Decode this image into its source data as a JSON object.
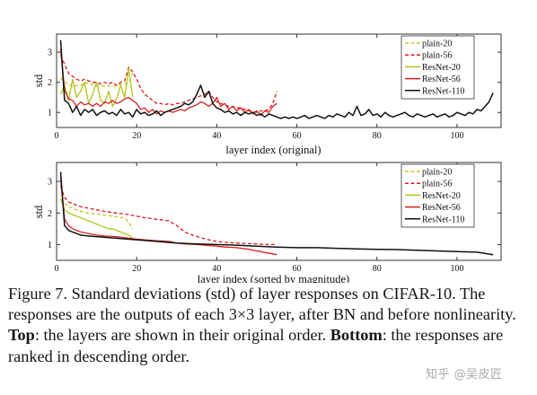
{
  "colors": {
    "plain_20": "#c8c42a",
    "plain_56": "#dd1c1c",
    "resnet_20": "#b4c31c",
    "resnet_56": "#d61f1f",
    "resnet_110": "#111111"
  },
  "caption": {
    "figure_label": "Figure 7. Standard deviations (std) of layer responses on CIFAR-10. The responses are the outputs of each 3×3 layer, after BN and before nonlinearity. ",
    "top_word": "Top",
    "top_text": ": the layers are shown in their original order. ",
    "bottom_word": "Bottom",
    "bottom_text": ": the responses are ranked in descending order."
  },
  "watermark": "知乎 @吴皮匠",
  "chart_data": [
    {
      "type": "line",
      "xlabel": "layer index (original)",
      "ylabel": "std",
      "xlim": [
        0,
        111
      ],
      "ylim": [
        0.5,
        3.6
      ],
      "xticks": [
        0,
        20,
        40,
        60,
        80,
        100
      ],
      "yticks": [
        1,
        2,
        3
      ],
      "grid": false,
      "legend_position": "top-right",
      "series": [
        {
          "name": "plain-20",
          "style": "dashed",
          "x": [
            1,
            2,
            3,
            4,
            5,
            6,
            7,
            8,
            9,
            10,
            11,
            12,
            13,
            14,
            15,
            16,
            17,
            18,
            19
          ],
          "y": [
            2.15,
            2.0,
            1.95,
            1.85,
            1.9,
            1.88,
            2.0,
            1.95,
            1.92,
            1.88,
            1.9,
            1.86,
            1.88,
            1.85,
            1.9,
            1.93,
            1.95,
            2.0,
            2.3
          ]
        },
        {
          "name": "plain-56",
          "style": "dashed",
          "x": [
            1,
            2,
            3,
            4,
            5,
            6,
            7,
            8,
            9,
            10,
            11,
            12,
            13,
            14,
            15,
            16,
            17,
            18,
            19,
            20,
            21,
            22,
            23,
            24,
            25,
            26,
            27,
            28,
            29,
            30,
            31,
            32,
            33,
            34,
            35,
            36,
            37,
            38,
            39,
            40,
            41,
            42,
            43,
            44,
            45,
            46,
            47,
            48,
            49,
            50,
            51,
            52,
            53,
            54,
            55
          ],
          "y": [
            2.9,
            2.6,
            2.3,
            2.2,
            2.1,
            2.05,
            2.1,
            2.05,
            2.0,
            2.0,
            1.95,
            2.0,
            1.95,
            2.0,
            1.9,
            2.0,
            2.05,
            2.5,
            2.35,
            2.1,
            1.8,
            1.6,
            1.5,
            1.4,
            1.3,
            1.3,
            1.25,
            1.3,
            1.25,
            1.3,
            1.3,
            1.35,
            1.4,
            1.45,
            1.5,
            1.55,
            1.6,
            1.7,
            1.5,
            1.35,
            1.3,
            1.25,
            1.2,
            1.2,
            1.15,
            1.15,
            1.1,
            1.05,
            1.05,
            1.0,
            1.05,
            1.05,
            1.1,
            1.3,
            1.7
          ]
        },
        {
          "name": "ResNet-20",
          "style": "solid",
          "x": [
            1,
            2,
            3,
            4,
            5,
            6,
            7,
            8,
            9,
            10,
            11,
            12,
            13,
            14,
            15,
            16,
            17,
            18,
            19
          ],
          "y": [
            1.6,
            1.9,
            1.4,
            2.1,
            1.5,
            1.7,
            2.0,
            1.3,
            1.6,
            2.0,
            1.4,
            1.3,
            1.7,
            1.2,
            1.45,
            1.9,
            1.5,
            2.45,
            1.5
          ]
        },
        {
          "name": "ResNet-56",
          "style": "solid",
          "x": [
            1,
            2,
            3,
            4,
            5,
            6,
            7,
            8,
            9,
            10,
            11,
            12,
            13,
            14,
            15,
            16,
            17,
            18,
            19,
            20,
            21,
            22,
            23,
            24,
            25,
            26,
            27,
            28,
            29,
            30,
            31,
            32,
            33,
            34,
            35,
            36,
            37,
            38,
            39,
            40,
            41,
            42,
            43,
            44,
            45,
            46,
            47,
            48,
            49,
            50,
            51,
            52,
            53,
            54,
            55
          ],
          "y": [
            3.1,
            1.75,
            1.45,
            1.4,
            1.2,
            1.35,
            1.25,
            1.3,
            1.2,
            1.3,
            1.2,
            1.35,
            1.3,
            1.4,
            1.3,
            1.35,
            1.45,
            1.5,
            1.4,
            1.3,
            1.1,
            1.15,
            1.0,
            1.1,
            0.95,
            1.05,
            1.0,
            1.05,
            1.0,
            1.05,
            1.1,
            1.05,
            1.15,
            1.2,
            1.25,
            1.35,
            1.3,
            1.2,
            1.3,
            1.5,
            1.2,
            1.3,
            1.1,
            1.2,
            1.05,
            1.15,
            1.0,
            1.1,
            0.95,
            1.05,
            0.9,
            1.05,
            1.0,
            1.2,
            1.3
          ]
        },
        {
          "name": "ResNet-110",
          "style": "solid",
          "x": [
            1,
            2,
            3,
            4,
            5,
            6,
            7,
            8,
            9,
            10,
            11,
            12,
            13,
            14,
            15,
            16,
            17,
            18,
            19,
            20,
            21,
            22,
            23,
            24,
            25,
            26,
            27,
            28,
            29,
            30,
            31,
            32,
            33,
            34,
            35,
            36,
            37,
            38,
            39,
            40,
            41,
            42,
            43,
            44,
            45,
            46,
            47,
            48,
            49,
            50,
            51,
            52,
            53,
            54,
            55,
            56,
            57,
            58,
            59,
            60,
            61,
            62,
            63,
            64,
            65,
            66,
            67,
            68,
            69,
            70,
            71,
            72,
            73,
            74,
            75,
            76,
            77,
            78,
            79,
            80,
            81,
            82,
            83,
            84,
            85,
            86,
            87,
            88,
            89,
            90,
            91,
            92,
            93,
            94,
            95,
            96,
            97,
            98,
            99,
            100,
            101,
            102,
            103,
            104,
            105,
            106,
            107,
            108,
            109
          ],
          "y": [
            3.4,
            1.4,
            1.3,
            1.0,
            1.2,
            0.9,
            1.1,
            1.0,
            1.1,
            0.9,
            1.0,
            1.05,
            0.95,
            1.0,
            0.9,
            1.1,
            0.95,
            1.0,
            0.85,
            1.1,
            0.95,
            1.0,
            0.9,
            0.95,
            1.05,
            0.9,
            1.0,
            1.05,
            1.1,
            1.15,
            1.2,
            1.3,
            1.25,
            1.35,
            1.6,
            1.9,
            1.5,
            1.7,
            1.3,
            1.15,
            1.1,
            1.0,
            1.05,
            0.95,
            1.0,
            0.9,
            1.0,
            0.95,
            1.0,
            0.9,
            0.95,
            0.85,
            0.95,
            0.9,
            0.85,
            0.8,
            0.85,
            0.8,
            0.85,
            0.8,
            0.85,
            0.9,
            0.8,
            0.85,
            0.9,
            0.85,
            0.8,
            0.9,
            0.85,
            0.95,
            0.9,
            0.85,
            1.0,
            0.9,
            1.2,
            0.9,
            0.95,
            1.1,
            0.9,
            0.95,
            0.85,
            1.0,
            0.9,
            0.85,
            0.9,
            0.95,
            1.0,
            0.9,
            0.85,
            0.95,
            0.9,
            0.85,
            0.9,
            0.95,
            0.85,
            0.9,
            0.95,
            0.85,
            0.9,
            1.0,
            0.95,
            0.9,
            1.0,
            0.95,
            1.1,
            1.05,
            1.2,
            1.35,
            1.65
          ]
        }
      ]
    },
    {
      "type": "line",
      "xlabel": "layer index (sorted by magnitude)",
      "ylabel": "std",
      "xlim": [
        0,
        111
      ],
      "ylim": [
        0.5,
        3.6
      ],
      "xticks": [
        0,
        20,
        40,
        60,
        80,
        100
      ],
      "yticks": [
        1,
        2,
        3
      ],
      "grid": false,
      "legend_position": "top-right",
      "series": [
        {
          "name": "plain-20",
          "style": "dashed",
          "x": [
            1,
            2,
            3,
            4,
            5,
            6,
            7,
            8,
            9,
            10,
            11,
            12,
            13,
            14,
            15,
            16,
            17,
            18,
            19
          ],
          "y": [
            2.45,
            2.3,
            2.2,
            2.15,
            2.1,
            2.05,
            2.02,
            2.0,
            1.98,
            1.96,
            1.95,
            1.93,
            1.92,
            1.9,
            1.88,
            1.86,
            1.85,
            1.7,
            1.5
          ]
        },
        {
          "name": "plain-56",
          "style": "dashed",
          "x": [
            1,
            2,
            3,
            4,
            5,
            6,
            8,
            10,
            12,
            15,
            18,
            20,
            22,
            25,
            28,
            30,
            32,
            34,
            36,
            38,
            40,
            42,
            45,
            48,
            50,
            52,
            55
          ],
          "y": [
            2.85,
            2.5,
            2.35,
            2.3,
            2.25,
            2.2,
            2.15,
            2.1,
            2.05,
            2.0,
            1.95,
            1.9,
            1.85,
            1.8,
            1.75,
            1.6,
            1.4,
            1.3,
            1.22,
            1.15,
            1.1,
            1.07,
            1.05,
            1.03,
            1.02,
            1.0,
            1.0
          ]
        },
        {
          "name": "ResNet-20",
          "style": "solid",
          "x": [
            1,
            2,
            3,
            4,
            5,
            6,
            7,
            8,
            9,
            10,
            11,
            12,
            13,
            14,
            15,
            16,
            17,
            18,
            19
          ],
          "y": [
            2.45,
            2.1,
            2.0,
            1.95,
            1.9,
            1.85,
            1.8,
            1.75,
            1.7,
            1.65,
            1.6,
            1.55,
            1.5,
            1.5,
            1.45,
            1.4,
            1.35,
            1.3,
            1.2
          ]
        },
        {
          "name": "ResNet-56",
          "style": "solid",
          "x": [
            1,
            2,
            3,
            4,
            5,
            6,
            8,
            10,
            12,
            15,
            18,
            20,
            22,
            25,
            28,
            30,
            32,
            35,
            38,
            40,
            42,
            45,
            48,
            50,
            52,
            55
          ],
          "y": [
            3.1,
            1.8,
            1.6,
            1.5,
            1.45,
            1.4,
            1.35,
            1.3,
            1.27,
            1.25,
            1.2,
            1.17,
            1.15,
            1.12,
            1.1,
            1.05,
            1.02,
            1.0,
            0.97,
            0.95,
            0.92,
            0.9,
            0.85,
            0.8,
            0.75,
            0.68
          ]
        },
        {
          "name": "ResNet-110",
          "style": "solid",
          "x": [
            1,
            2,
            3,
            4,
            5,
            6,
            8,
            10,
            15,
            20,
            25,
            30,
            35,
            40,
            45,
            50,
            55,
            60,
            65,
            70,
            75,
            80,
            85,
            90,
            95,
            100,
            105,
            108,
            109
          ],
          "y": [
            3.3,
            1.6,
            1.45,
            1.4,
            1.35,
            1.3,
            1.27,
            1.25,
            1.2,
            1.15,
            1.1,
            1.05,
            1.02,
            1.0,
            0.98,
            0.95,
            0.92,
            0.9,
            0.9,
            0.88,
            0.86,
            0.85,
            0.84,
            0.82,
            0.8,
            0.78,
            0.76,
            0.7,
            0.68
          ]
        }
      ]
    }
  ]
}
